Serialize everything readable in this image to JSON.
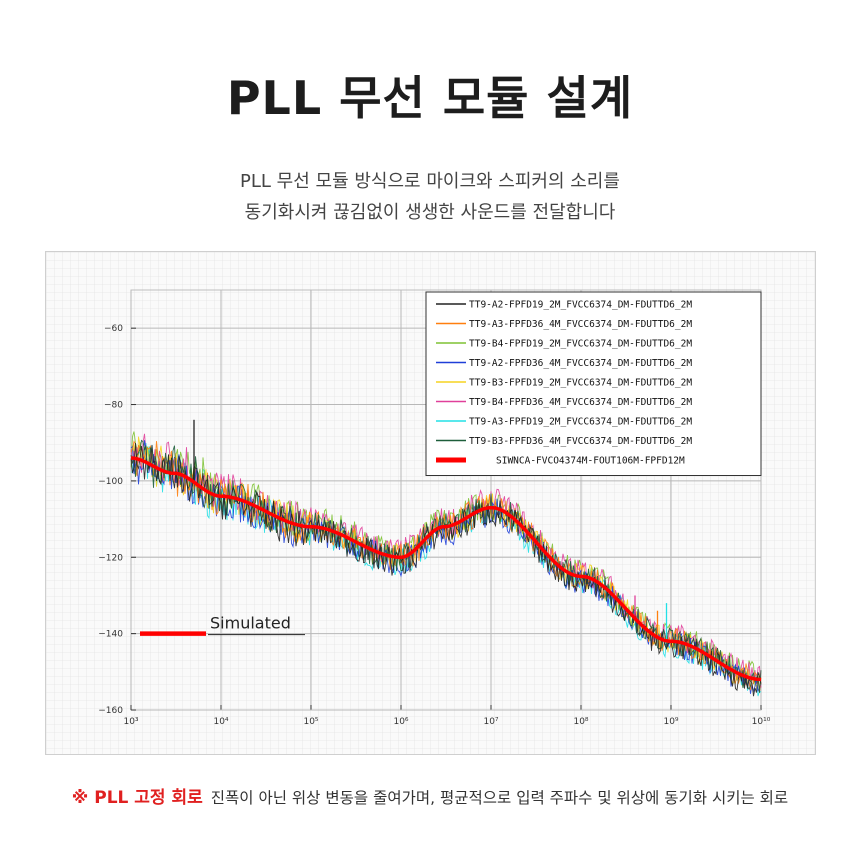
{
  "page": {
    "title": "PLL 무선 모듈 설계",
    "subtitle_line1": "PLL 무선 모듈 방식으로 마이크와 스피커의 소리를",
    "subtitle_line2": "동기화시켜 끊김없이 생생한 사운드를 전달합니다",
    "footer_mark": "※ PLL 고정 회로",
    "footer_text": "진폭이 아닌 위상 변동을 줄여가며, 평균적으로 입력 주파수 및 위상에 동기화 시키는 회로"
  },
  "chart_data": {
    "type": "line",
    "x_scale": "log",
    "xlim": [
      1000,
      10000000000
    ],
    "ylim": [
      -160,
      -50
    ],
    "x_tick_labels": [
      "10³",
      "10⁴",
      "10⁵",
      "10⁶",
      "10⁷",
      "10⁸",
      "10⁹",
      "10¹⁰"
    ],
    "y_ticks": [
      -60,
      -80,
      -100,
      -120,
      -140,
      -160
    ],
    "grid": true,
    "legend_position": "top-right",
    "annotation": "Simulated",
    "series": [
      {
        "name": "TT9-A2-FPFD19_2M_FVCC6374_DM-FDUTTD6_2M",
        "color": "#222222"
      },
      {
        "name": "TT9-A3-FPFD36_4M_FVCC6374_DM-FDUTTD6_2M",
        "color": "#ff7f0e"
      },
      {
        "name": "TT9-B4-FPFD19_2M_FVCC6374_DM-FDUTTD6_2M",
        "color": "#7ec234"
      },
      {
        "name": "TT9-A2-FPFD36_4M_FVCC6374_DM-FDUTTD6_2M",
        "color": "#1f3fd8"
      },
      {
        "name": "TT9-B3-FPFD19_2M_FVCC6374_DM-FDUTTD6_2M",
        "color": "#f5d320"
      },
      {
        "name": "TT9-B4-FPFD36_4M_FVCC6374_DM-FDUTTD6_2M",
        "color": "#e0409a"
      },
      {
        "name": "TT9-A3-FPFD19_2M_FVCC6374_DM-FDUTTD6_2M",
        "color": "#22e0e6"
      },
      {
        "name": "TT9-B3-FPFD36_4M_FVCC6374_DM-FDUTTD6_2M",
        "color": "#1d5e3a"
      },
      {
        "name": "SIWNCA-FVCO4374M-FOUT106M-FPFD12M",
        "color": "#ff0000",
        "simulated": true
      }
    ],
    "simulated_curve": {
      "x": [
        1000,
        3000,
        10000,
        100000,
        1000000,
        3000000,
        10000000,
        100000000,
        1000000000,
        10000000000
      ],
      "y": [
        -94,
        -98,
        -104,
        -112,
        -120,
        -112,
        -107,
        -125,
        -142,
        -152
      ]
    }
  }
}
